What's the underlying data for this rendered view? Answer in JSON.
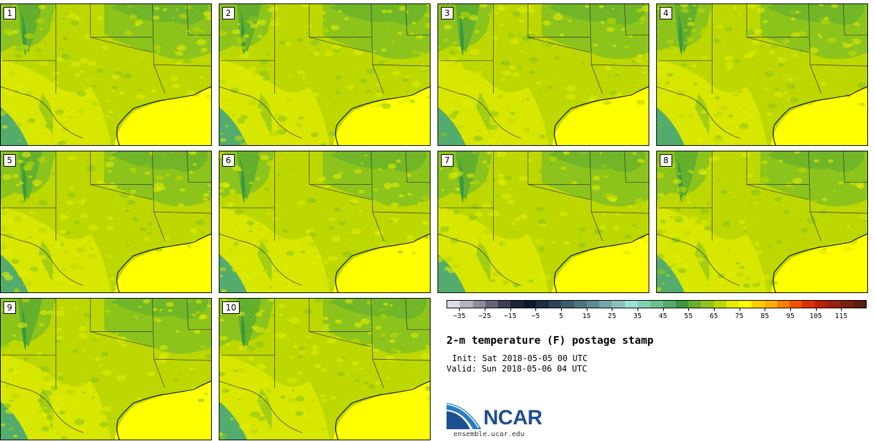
{
  "panels": [
    {
      "label": "1"
    },
    {
      "label": "2"
    },
    {
      "label": "3"
    },
    {
      "label": "4"
    },
    {
      "label": "5"
    },
    {
      "label": "6"
    },
    {
      "label": "7"
    },
    {
      "label": "8"
    },
    {
      "label": "9"
    },
    {
      "label": "10"
    }
  ],
  "colorbar": {
    "colors": [
      "#dcdce4",
      "#b4b4c0",
      "#8c8c9c",
      "#646478",
      "#3c3c54",
      "#1c2438",
      "#0c1830",
      "#1c2c44",
      "#2c4458",
      "#3c5c6c",
      "#4c7480",
      "#5c8c94",
      "#74a4a8",
      "#8cc0bc",
      "#9ce0d4",
      "#84d0b0",
      "#6cc08c",
      "#54ac6c",
      "#3c9840",
      "#64b02c",
      "#8cc41c",
      "#bcd800",
      "#e0ec00",
      "#ffff00",
      "#ffd000",
      "#ffb000",
      "#ff8000",
      "#f05000",
      "#d83000",
      "#b82000",
      "#982010",
      "#782010",
      "#5c1c10"
    ],
    "tick_labels": [
      "−35",
      "−25",
      "−15",
      "−5",
      "5",
      "15",
      "25",
      "35",
      "45",
      "55",
      "65",
      "75",
      "85",
      "95",
      "105",
      "115"
    ]
  },
  "title": "2-m temperature (F) postage stamp",
  "init": "Init: Sat 2018-05-05 00 UTC",
  "valid": "Valid: Sun 2018-05-06 04 UTC",
  "logo": {
    "text": "NCAR",
    "colors": {
      "brand": "#1d4f91",
      "swoosh": "#2a7cc0"
    }
  },
  "website": "ensemble.ucar.edu"
}
